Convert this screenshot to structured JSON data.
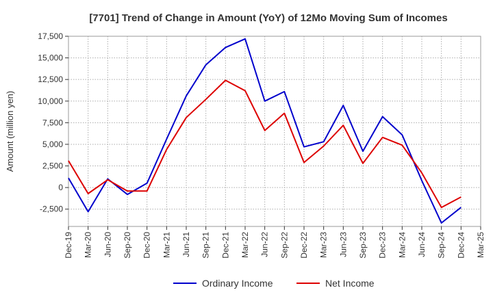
{
  "chart_data": {
    "type": "line",
    "title": "[7701]  Trend of Change in Amount (YoY) of 12Mo Moving Sum of Incomes",
    "xlabel": "",
    "ylabel": "Amount (million yen)",
    "ylim": [
      -4500,
      17500
    ],
    "yticks": [
      -2500,
      0,
      2500,
      5000,
      7500,
      10000,
      12500,
      15000,
      17500
    ],
    "ytick_labels": [
      "-2,500",
      "0",
      "2,500",
      "5,000",
      "7,500",
      "10,000",
      "12,500",
      "15,000",
      "17,500"
    ],
    "xtick_labels": [
      "Dec-19",
      "Mar-20",
      "Jun-20",
      "Sep-20",
      "Dec-20",
      "Mar-21",
      "Jun-21",
      "Sep-21",
      "Dec-21",
      "Mar-22",
      "Jun-22",
      "Sep-22",
      "Dec-22",
      "Mar-23",
      "Jun-23",
      "Sep-23",
      "Dec-23",
      "Mar-24",
      "Jun-24",
      "Sep-24",
      "Dec-24",
      "Mar-25"
    ],
    "x": [
      "Dec-19",
      "Mar-20",
      "Jun-20",
      "Sep-20",
      "Dec-20",
      "Mar-21",
      "Jun-21",
      "Sep-21",
      "Dec-21",
      "Mar-22",
      "Jun-22",
      "Sep-22",
      "Dec-22",
      "Mar-23",
      "Jun-23",
      "Sep-23",
      "Dec-23",
      "Mar-24",
      "Jun-24",
      "Sep-24",
      "Dec-24"
    ],
    "grid": true,
    "legend_position": "bottom",
    "series": [
      {
        "name": "Ordinary Income",
        "color": "#0000cc",
        "values": [
          1100,
          -2800,
          1000,
          -800,
          500,
          5600,
          10600,
          14200,
          16200,
          17200,
          10000,
          11100,
          4700,
          5300,
          9500,
          4200,
          8200,
          6100,
          800,
          -4100,
          -2300
        ]
      },
      {
        "name": "Net Income",
        "color": "#dd0000",
        "values": [
          3100,
          -700,
          900,
          -400,
          -400,
          4400,
          8100,
          10200,
          12400,
          11200,
          6600,
          8600,
          2900,
          4800,
          7200,
          2800,
          5800,
          4900,
          1700,
          -2300,
          -1100
        ]
      }
    ]
  }
}
